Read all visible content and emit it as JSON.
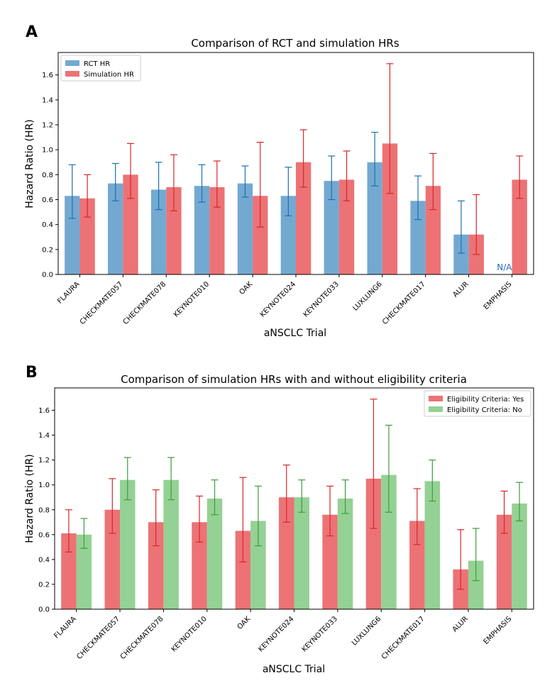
{
  "chart_data": [
    {
      "panel": "A",
      "type": "bar",
      "title": "Comparison of RCT and simulation HRs",
      "xlabel": "aNSCLC Trial",
      "ylabel": "Hazard Ratio (HR)",
      "ylim": [
        0,
        1.78
      ],
      "yticks": [
        "0.0",
        "0.2",
        "0.4",
        "0.6",
        "0.8",
        "1.0",
        "1.2",
        "1.4",
        "1.6"
      ],
      "legend_position": "top-left",
      "categories": [
        "FLAURA",
        "CHECKMATE057",
        "CHECKMATE078",
        "KEYNOTE010",
        "OAK",
        "KEYNOTE024",
        "KEYNOTE033",
        "LUXLUNG6",
        "CHECKMATE017",
        "ALUR",
        "EMPHASIS"
      ],
      "na_label": "N/A",
      "series": [
        {
          "name": "RCT HR",
          "color": "#73a9d1",
          "err_color": "#1f6fb4",
          "values": [
            0.63,
            0.73,
            0.68,
            0.71,
            0.73,
            0.63,
            0.75,
            0.9,
            0.59,
            0.32,
            null
          ],
          "lower": [
            0.45,
            0.59,
            0.52,
            0.58,
            0.62,
            0.47,
            0.6,
            0.71,
            0.44,
            0.17,
            null
          ],
          "upper": [
            0.88,
            0.89,
            0.9,
            0.88,
            0.87,
            0.86,
            0.95,
            1.14,
            0.79,
            0.59,
            null
          ]
        },
        {
          "name": "Simulation HR",
          "color": "#ec7275",
          "err_color": "#d62728",
          "values": [
            0.61,
            0.8,
            0.7,
            0.7,
            0.63,
            0.9,
            0.76,
            1.05,
            0.71,
            0.32,
            0.76
          ],
          "lower": [
            0.46,
            0.61,
            0.51,
            0.54,
            0.38,
            0.7,
            0.59,
            0.65,
            0.52,
            0.16,
            0.61
          ],
          "upper": [
            0.8,
            1.05,
            0.96,
            0.91,
            1.06,
            1.16,
            0.99,
            1.69,
            0.97,
            0.64,
            0.95
          ]
        }
      ]
    },
    {
      "panel": "B",
      "type": "bar",
      "title": "Comparison of simulation HRs with and without eligibility criteria",
      "xlabel": "aNSCLC Trial",
      "ylabel": "Hazard Ratio (HR)",
      "ylim": [
        0,
        1.78
      ],
      "yticks": [
        "0.0",
        "0.2",
        "0.4",
        "0.6",
        "0.8",
        "1.0",
        "1.2",
        "1.4",
        "1.6"
      ],
      "legend_position": "top-right",
      "categories": [
        "FLAURA",
        "CHECKMATE057",
        "CHECKMATE078",
        "KEYNOTE010",
        "OAK",
        "KEYNOTE024",
        "KEYNOTE033",
        "LUXLUNG6",
        "CHECKMATE017",
        "ALUR",
        "EMPHASIS"
      ],
      "series": [
        {
          "name": "Eligibility Criteria: Yes",
          "color": "#ec7275",
          "err_color": "#d62728",
          "values": [
            0.61,
            0.8,
            0.7,
            0.7,
            0.63,
            0.9,
            0.76,
            1.05,
            0.71,
            0.32,
            0.76
          ],
          "lower": [
            0.46,
            0.61,
            0.51,
            0.54,
            0.38,
            0.7,
            0.59,
            0.65,
            0.52,
            0.16,
            0.61
          ],
          "upper": [
            0.8,
            1.05,
            0.96,
            0.91,
            1.06,
            1.16,
            0.99,
            1.69,
            0.97,
            0.64,
            0.95
          ]
        },
        {
          "name": "Eligibility Criteria: No",
          "color": "#94d194",
          "err_color": "#3c9c3c",
          "values": [
            0.6,
            1.04,
            1.04,
            0.89,
            0.71,
            0.9,
            0.89,
            1.08,
            1.03,
            0.39,
            0.85
          ],
          "lower": [
            0.49,
            0.88,
            0.88,
            0.76,
            0.51,
            0.78,
            0.77,
            0.78,
            0.87,
            0.23,
            0.71
          ],
          "upper": [
            0.73,
            1.22,
            1.22,
            1.04,
            0.99,
            1.04,
            1.04,
            1.48,
            1.2,
            0.65,
            1.02
          ]
        }
      ]
    }
  ]
}
